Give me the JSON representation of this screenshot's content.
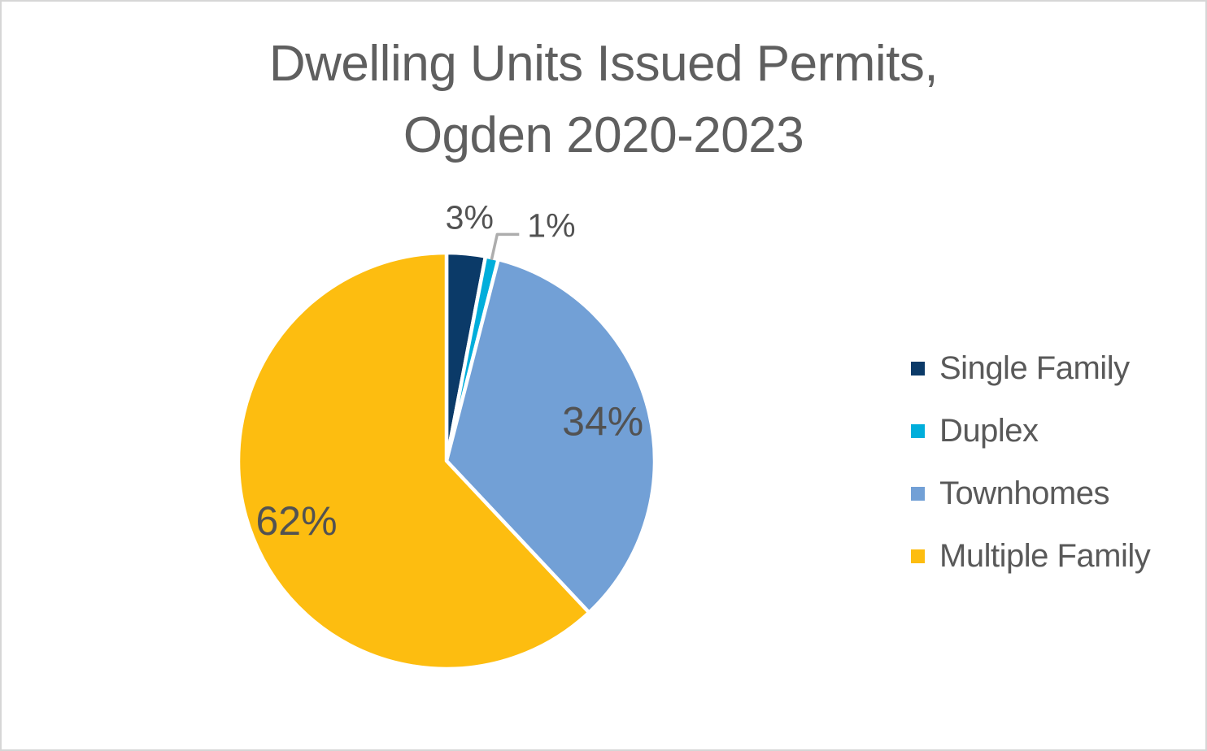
{
  "title": {
    "line1": "Dwelling Units Issued Permits,",
    "line2": "Ogden 2020-2023"
  },
  "legend": {
    "position": "right",
    "items": [
      {
        "label": "Single Family",
        "color": "#0b3a68"
      },
      {
        "label": "Duplex",
        "color": "#00aedb"
      },
      {
        "label": "Townhomes",
        "color": "#72a0d6"
      },
      {
        "label": "Multiple Family",
        "color": "#fdbd10"
      }
    ]
  },
  "chart_data": {
    "type": "pie",
    "title": "Dwelling Units Issued Permits, Ogden 2020-2023",
    "categories": [
      "Single Family",
      "Duplex",
      "Townhomes",
      "Multiple Family"
    ],
    "values": [
      3,
      1,
      34,
      62
    ],
    "unit": "percent",
    "start_angle_deg": 0,
    "direction": "clockwise",
    "legend_position": "right",
    "slices": [
      {
        "label": "Single Family",
        "value": 3,
        "display": "3%",
        "color": "#0b3a68",
        "label_style": "outside"
      },
      {
        "label": "Duplex",
        "value": 1,
        "display": "1%",
        "color": "#00aedb",
        "label_style": "outside-leader"
      },
      {
        "label": "Townhomes",
        "value": 34,
        "display": "34%",
        "color": "#72a0d6",
        "label_style": "inside"
      },
      {
        "label": "Multiple Family",
        "value": 62,
        "display": "62%",
        "color": "#fdbd10",
        "label_style": "inside"
      }
    ]
  },
  "colors": {
    "background": "#ffffff",
    "canvas_border": "#d6d6d6",
    "title_text": "#5f5f5f",
    "percent_label_text": "#525252",
    "legend_text": "#595959",
    "slice_border": "#ffffff",
    "leader_line": "#adadad"
  }
}
